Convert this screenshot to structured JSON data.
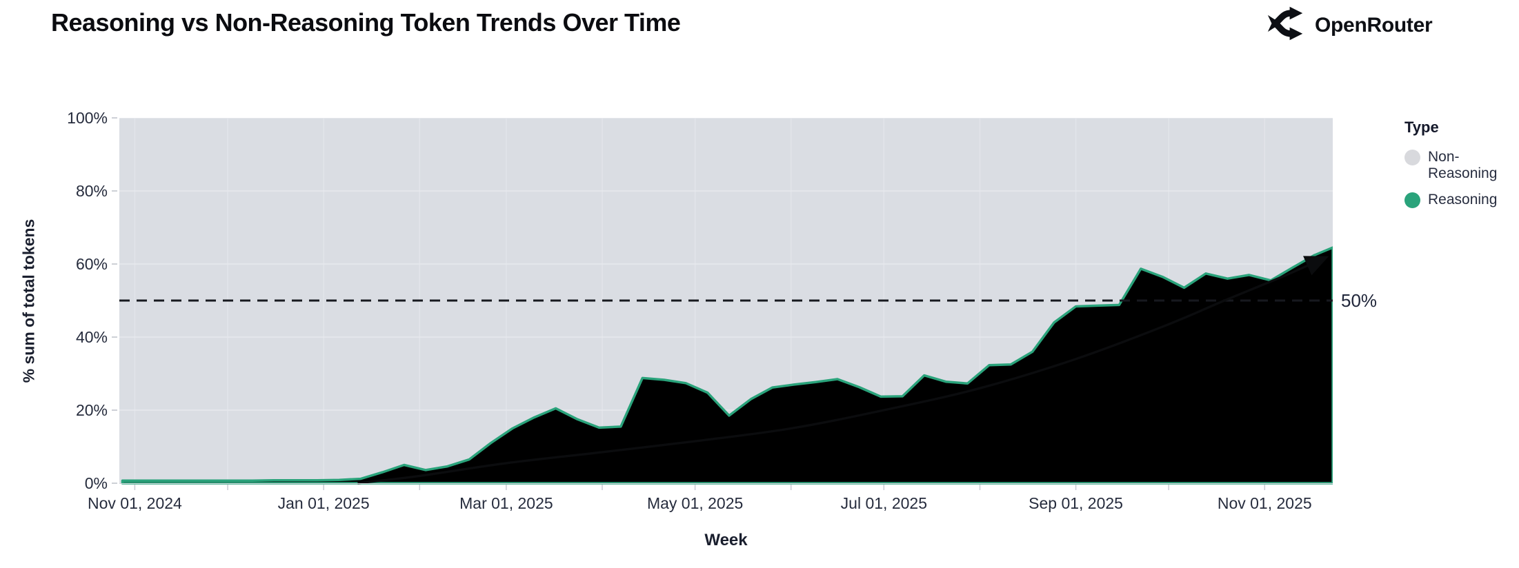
{
  "header": {
    "title": "Reasoning vs Non-Reasoning Token Trends Over Time",
    "brand": "OpenRouter"
  },
  "chart": {
    "y_axis": {
      "title": "% sum of total tokens",
      "ticks": [
        {
          "label": "0%",
          "value": 0
        },
        {
          "label": "20%",
          "value": 20
        },
        {
          "label": "40%",
          "value": 40
        },
        {
          "label": "60%",
          "value": 60
        },
        {
          "label": "80%",
          "value": 80
        },
        {
          "label": "100%",
          "value": 100
        }
      ]
    },
    "x_axis": {
      "title": "Week",
      "ticks": [
        {
          "label": "Nov 01, 2024",
          "date": "2024-11-01"
        },
        {
          "label": "Jan 01, 2025",
          "date": "2025-01-01"
        },
        {
          "label": "Mar 01, 2025",
          "date": "2025-03-01"
        },
        {
          "label": "May 01, 2025",
          "date": "2025-05-01"
        },
        {
          "label": "Jul 01, 2025",
          "date": "2025-07-01"
        },
        {
          "label": "Sep 01, 2025",
          "date": "2025-09-01"
        },
        {
          "label": "Nov 01, 2025",
          "date": "2025-11-01"
        }
      ]
    },
    "legend": {
      "title": "Type",
      "items": [
        {
          "label": "Non-Reasoning",
          "color": "#d8d9dd"
        },
        {
          "label": "Reasoning",
          "color": "#2aa37b"
        }
      ]
    },
    "reference_label": "50%",
    "chart_data": {
      "type": "area",
      "stacking": "percent",
      "x_domain": [
        "2024-10-27",
        "2025-11-23"
      ],
      "ylim": [
        0,
        100
      ],
      "grid": true,
      "gridlines": {
        "y_values": [
          20,
          40,
          60,
          80,
          100
        ],
        "x_monthly": true
      },
      "colors": {
        "plot_bg_non_reasoning": "#dadde3",
        "reasoning_fill": "#4cb795",
        "reasoning_stroke": "#2aa37b",
        "grid_vertical": "#e2e4ea",
        "grid_horizontal": "#e7e9ee",
        "month_tick": "#c8cbd3",
        "axis_line": "#d2d5db",
        "dashed_line": "#17191f",
        "trend_arrow": "#0b0c0e"
      },
      "reference_line": {
        "value": 50,
        "label": "50%",
        "style": "dashed"
      },
      "series": [
        {
          "name": "Reasoning",
          "unit": "% of total tokens",
          "points": [
            [
              "2024-10-28",
              0.7
            ],
            [
              "2024-11-04",
              0.7
            ],
            [
              "2024-11-11",
              0.7
            ],
            [
              "2024-11-18",
              0.7
            ],
            [
              "2024-11-25",
              0.7
            ],
            [
              "2024-12-02",
              0.7
            ],
            [
              "2024-12-09",
              0.7
            ],
            [
              "2024-12-16",
              0.8
            ],
            [
              "2024-12-23",
              0.8
            ],
            [
              "2024-12-30",
              0.8
            ],
            [
              "2025-01-06",
              0.9
            ],
            [
              "2025-01-13",
              1.2
            ],
            [
              "2025-01-20",
              3.0
            ],
            [
              "2025-01-27",
              5.0
            ],
            [
              "2025-02-03",
              3.6
            ],
            [
              "2025-02-10",
              4.6
            ],
            [
              "2025-02-17",
              6.5
            ],
            [
              "2025-02-24",
              11.0
            ],
            [
              "2025-03-03",
              15.0
            ],
            [
              "2025-03-10",
              18.0
            ],
            [
              "2025-03-17",
              20.5
            ],
            [
              "2025-03-24",
              17.5
            ],
            [
              "2025-03-31",
              15.2
            ],
            [
              "2025-04-07",
              15.5
            ],
            [
              "2025-04-14",
              28.8
            ],
            [
              "2025-04-21",
              28.3
            ],
            [
              "2025-04-28",
              27.4
            ],
            [
              "2025-05-05",
              24.8
            ],
            [
              "2025-05-12",
              18.5
            ],
            [
              "2025-05-19",
              23.0
            ],
            [
              "2025-05-26",
              26.2
            ],
            [
              "2025-06-02",
              27.0
            ],
            [
              "2025-06-09",
              27.7
            ],
            [
              "2025-06-16",
              28.5
            ],
            [
              "2025-06-23",
              26.3
            ],
            [
              "2025-06-30",
              23.7
            ],
            [
              "2025-07-07",
              23.8
            ],
            [
              "2025-07-14",
              29.5
            ],
            [
              "2025-07-21",
              27.8
            ],
            [
              "2025-07-28",
              27.3
            ],
            [
              "2025-08-04",
              32.3
            ],
            [
              "2025-08-11",
              32.5
            ],
            [
              "2025-08-18",
              36.0
            ],
            [
              "2025-08-25",
              44.0
            ],
            [
              "2025-09-01",
              48.4
            ],
            [
              "2025-09-08",
              48.6
            ],
            [
              "2025-09-15",
              48.8
            ],
            [
              "2025-09-22",
              58.7
            ],
            [
              "2025-09-29",
              56.5
            ],
            [
              "2025-10-06",
              53.5
            ],
            [
              "2025-10-13",
              57.4
            ],
            [
              "2025-10-20",
              56.0
            ],
            [
              "2025-10-27",
              57.0
            ],
            [
              "2025-11-03",
              55.5
            ],
            [
              "2025-11-10",
              59.0
            ],
            [
              "2025-11-17",
              62.4
            ],
            [
              "2025-11-23",
              64.5
            ]
          ]
        },
        {
          "name": "Non-Reasoning",
          "unit": "% of total tokens",
          "note": "remainder to 100% (fills plot background above Reasoning area)"
        }
      ],
      "trend_arrow": {
        "description": "black exponential trend arrow",
        "points": [
          [
            "2025-01-12",
            0
          ],
          [
            "2025-02-01",
            2
          ],
          [
            "2025-03-01",
            5.5
          ],
          [
            "2025-04-01",
            8.5
          ],
          [
            "2025-05-01",
            11.5
          ],
          [
            "2025-06-01",
            15
          ],
          [
            "2025-07-01",
            20
          ],
          [
            "2025-08-01",
            26
          ],
          [
            "2025-09-01",
            34
          ],
          [
            "2025-10-01",
            43.5
          ],
          [
            "2025-10-19",
            50
          ],
          [
            "2025-11-08",
            57
          ],
          [
            "2025-11-20",
            61.5
          ]
        ]
      }
    }
  }
}
